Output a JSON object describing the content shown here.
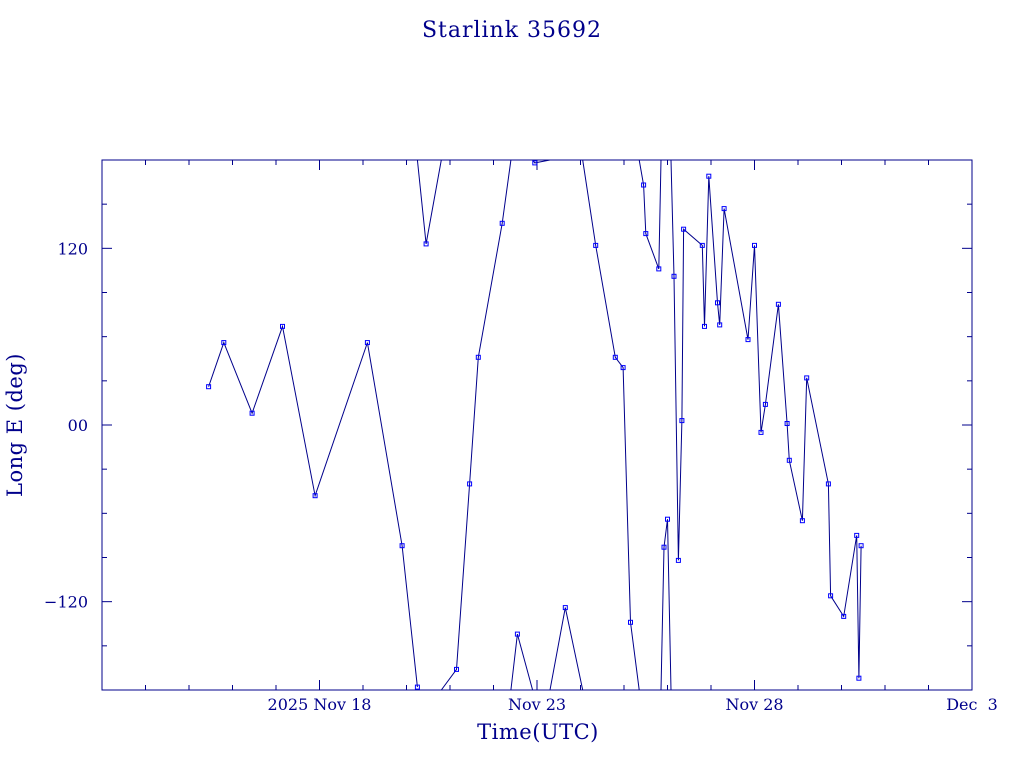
{
  "chart_data": {
    "type": "line",
    "title": "Starlink 35692",
    "xlabel": "Time(UTC)",
    "ylabel": "Long E (deg)",
    "x_unit": "day (UTC, November 2025)",
    "xlim": [
      13.0,
      33.0
    ],
    "ylim": [
      -180,
      180
    ],
    "x_tick_labels": [
      {
        "x": 18,
        "label": "2025 Nov 18"
      },
      {
        "x": 23,
        "label": "Nov 23"
      },
      {
        "x": 28,
        "label": "Nov 28"
      },
      {
        "x": 33,
        "label": "Dec  3"
      }
    ],
    "y_tick_labels": [
      {
        "y": 120,
        "label": "120"
      },
      {
        "y": 0,
        "label": "00"
      },
      {
        "y": -120,
        "label": "−120"
      }
    ],
    "grid": false,
    "series": [
      {
        "points": [
          [
            15.45,
            26
          ],
          [
            15.8,
            56
          ],
          [
            16.45,
            8
          ],
          [
            17.15,
            67
          ],
          [
            17.9,
            -48
          ],
          [
            19.1,
            56
          ],
          [
            19.9,
            -82
          ],
          [
            20.25,
            -178
          ],
          [
            20.25,
            180
          ],
          [
            20.45,
            123
          ],
          [
            20.8,
            180
          ],
          [
            20.8,
            -180
          ],
          [
            21.15,
            -166
          ],
          [
            21.45,
            -40
          ],
          [
            21.65,
            46
          ],
          [
            22.2,
            137
          ],
          [
            22.4,
            180
          ],
          [
            22.4,
            -180
          ],
          [
            22.55,
            -142
          ],
          [
            22.9,
            -180
          ],
          [
            22.9,
            180
          ],
          [
            22.95,
            178
          ],
          [
            23.3,
            180
          ],
          [
            23.3,
            -180
          ],
          [
            23.65,
            -124
          ],
          [
            24.05,
            -180
          ],
          [
            24.05,
            180
          ],
          [
            24.35,
            122
          ],
          [
            24.8,
            46
          ],
          [
            24.98,
            39
          ],
          [
            25.15,
            -134
          ],
          [
            25.35,
            -180
          ],
          [
            25.35,
            180
          ],
          [
            25.45,
            163
          ],
          [
            25.5,
            130
          ],
          [
            25.8,
            106
          ],
          [
            25.85,
            180
          ],
          [
            25.85,
            -180
          ],
          [
            25.92,
            -83
          ],
          [
            26.0,
            -64
          ],
          [
            26.08,
            -180
          ],
          [
            26.08,
            180
          ],
          [
            26.15,
            101
          ],
          [
            26.25,
            -92
          ],
          [
            26.33,
            3
          ],
          [
            26.37,
            133
          ],
          [
            26.8,
            122
          ],
          [
            26.85,
            67
          ],
          [
            26.95,
            169
          ],
          [
            27.15,
            83
          ],
          [
            27.2,
            68
          ],
          [
            27.3,
            147
          ],
          [
            27.85,
            58
          ],
          [
            28.0,
            122
          ],
          [
            28.15,
            -5
          ],
          [
            28.25,
            14
          ],
          [
            28.55,
            82
          ],
          [
            28.75,
            1
          ],
          [
            28.8,
            -24
          ],
          [
            29.1,
            -65
          ],
          [
            29.2,
            32
          ],
          [
            29.7,
            -40
          ],
          [
            29.75,
            -116
          ],
          [
            30.05,
            -130
          ],
          [
            30.35,
            -75
          ],
          [
            30.4,
            -172
          ],
          [
            30.45,
            -82
          ]
        ]
      }
    ]
  }
}
